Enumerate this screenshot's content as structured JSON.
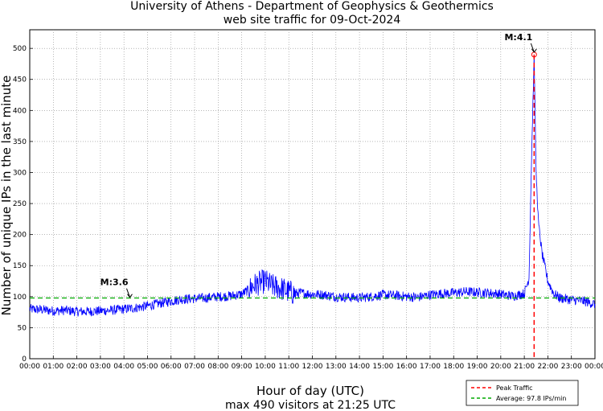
{
  "chart_data": {
    "type": "line",
    "title": "University of Athens - Department of Geophysics & Geothermics",
    "subtitle": "web site traffic for 09-Oct-2024",
    "xlabel": "Hour of day (UTC)",
    "ylabel": "Number of unique IPs in the last minute",
    "footer": "max 490 visitors at 21:25 UTC",
    "x_tick_labels": [
      "00:00",
      "01:00",
      "02:00",
      "03:00",
      "04:00",
      "05:00",
      "06:00",
      "07:00",
      "08:00",
      "09:00",
      "10:00",
      "11:00",
      "12:00",
      "13:00",
      "14:00",
      "15:00",
      "16:00",
      "17:00",
      "18:00",
      "19:00",
      "20:00",
      "21:00",
      "22:00",
      "23:00",
      "00:00"
    ],
    "y_tick_labels": [
      "0",
      "50",
      "100",
      "150",
      "200",
      "250",
      "300",
      "350",
      "400",
      "450",
      "500"
    ],
    "xlim": [
      0,
      24
    ],
    "ylim": [
      0,
      530
    ],
    "grid": true,
    "series": [
      {
        "color": "#0000ff",
        "x_hours": [
          0,
          0.5,
          1,
          1.5,
          2,
          2.5,
          3,
          3.5,
          4,
          4.5,
          5,
          5.5,
          6,
          6.5,
          7,
          7.5,
          8,
          8.5,
          9,
          9.25,
          9.5,
          9.75,
          10,
          10.25,
          10.5,
          10.75,
          11,
          11.25,
          11.5,
          12,
          12.5,
          13,
          13.5,
          14,
          14.5,
          15,
          15.5,
          16,
          16.5,
          17,
          17.5,
          18,
          18.5,
          19,
          19.5,
          20,
          20.5,
          20.75,
          21,
          21.2,
          21.3,
          21.4167,
          21.5,
          21.6,
          21.75,
          22,
          22.25,
          22.5,
          23,
          23.5,
          24
        ],
        "values": [
          80,
          79,
          77,
          78,
          76,
          76,
          77,
          78,
          80,
          82,
          85,
          89,
          93,
          96,
          97,
          98,
          100,
          101,
          104,
          110,
          118,
          122,
          125,
          118,
          115,
          112,
          108,
          105,
          106,
          104,
          103,
          100,
          99,
          98,
          100,
          103,
          102,
          100,
          99,
          103,
          105,
          106,
          108,
          107,
          106,
          104,
          101,
          103,
          105,
          130,
          310,
          490,
          300,
          220,
          170,
          125,
          105,
          98,
          95,
          93,
          88
        ]
      }
    ],
    "reference_lines": [
      {
        "name": "Peak Traffic",
        "orientation": "vertical",
        "x_hours": 21.4167,
        "color": "#ff0000",
        "style": "dashed"
      },
      {
        "name": "Average: 97.8 IPs/min",
        "orientation": "horizontal",
        "y": 97.8,
        "color": "#00aa00",
        "style": "dashed"
      }
    ],
    "annotations": [
      {
        "text": "M:3.6",
        "x_hours": 4.25,
        "y": 95
      },
      {
        "text": "M:4.1",
        "x_hours": 21.4167,
        "y": 490
      }
    ],
    "legend": {
      "position": "bottom-right",
      "entries": [
        "Peak Traffic",
        "Average: 97.8 IPs/min"
      ]
    }
  }
}
